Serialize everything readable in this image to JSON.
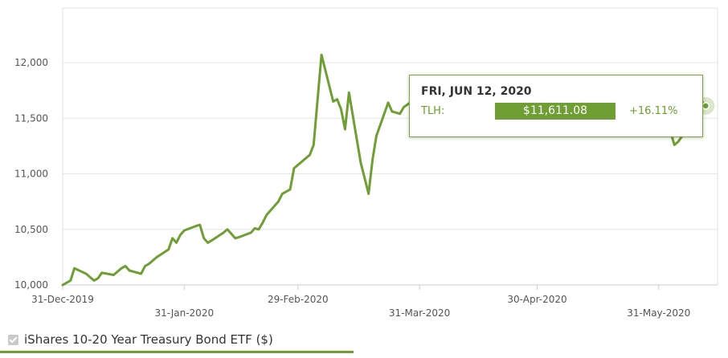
{
  "chart_data": {
    "type": "line",
    "ylim": [
      10000,
      12000
    ],
    "y_ticks": [
      "10,000",
      "10,500",
      "11,000",
      "11,500",
      "12,000"
    ],
    "x_ticks": [
      {
        "label": "31-Dec-2019",
        "date": "2019-12-31"
      },
      {
        "label": "31-Jan-2020",
        "date": "2020-01-31"
      },
      {
        "label": "29-Feb-2020",
        "date": "2020-02-29"
      },
      {
        "label": "31-Mar-2020",
        "date": "2020-03-31"
      },
      {
        "label": "30-Apr-2020",
        "date": "2020-04-30"
      },
      {
        "label": "31-May-2020",
        "date": "2020-05-31"
      }
    ],
    "grid": true,
    "line_color": "#6e9e34",
    "series": [
      {
        "name": "iShares 10-20 Year Treasury Bond ETF ($)",
        "points": [
          [
            "2019-12-31",
            10000
          ],
          [
            "2020-01-02",
            10040
          ],
          [
            "2020-01-03",
            10150
          ],
          [
            "2020-01-06",
            10100
          ],
          [
            "2020-01-08",
            10040
          ],
          [
            "2020-01-09",
            10060
          ],
          [
            "2020-01-10",
            10110
          ],
          [
            "2020-01-13",
            10090
          ],
          [
            "2020-01-15",
            10150
          ],
          [
            "2020-01-16",
            10170
          ],
          [
            "2020-01-17",
            10130
          ],
          [
            "2020-01-20",
            10100
          ],
          [
            "2020-01-21",
            10170
          ],
          [
            "2020-01-22",
            10190
          ],
          [
            "2020-01-24",
            10250
          ],
          [
            "2020-01-27",
            10320
          ],
          [
            "2020-01-28",
            10420
          ],
          [
            "2020-01-29",
            10380
          ],
          [
            "2020-01-30",
            10450
          ],
          [
            "2020-01-31",
            10490
          ],
          [
            "2020-02-03",
            10530
          ],
          [
            "2020-02-04",
            10540
          ],
          [
            "2020-02-05",
            10420
          ],
          [
            "2020-02-06",
            10380
          ],
          [
            "2020-02-07",
            10400
          ],
          [
            "2020-02-10",
            10470
          ],
          [
            "2020-02-11",
            10500
          ],
          [
            "2020-02-12",
            10460
          ],
          [
            "2020-02-13",
            10420
          ],
          [
            "2020-02-14",
            10430
          ],
          [
            "2020-02-17",
            10470
          ],
          [
            "2020-02-18",
            10510
          ],
          [
            "2020-02-19",
            10500
          ],
          [
            "2020-02-20",
            10560
          ],
          [
            "2020-02-21",
            10630
          ],
          [
            "2020-02-24",
            10750
          ],
          [
            "2020-02-25",
            10820
          ],
          [
            "2020-02-26",
            10840
          ],
          [
            "2020-02-27",
            10860
          ],
          [
            "2020-02-28",
            11050
          ],
          [
            "2020-03-02",
            11140
          ],
          [
            "2020-03-03",
            11170
          ],
          [
            "2020-03-04",
            11260
          ],
          [
            "2020-03-06",
            12070
          ],
          [
            "2020-03-09",
            11650
          ],
          [
            "2020-03-10",
            11670
          ],
          [
            "2020-03-11",
            11580
          ],
          [
            "2020-03-12",
            11400
          ],
          [
            "2020-03-13",
            11730
          ],
          [
            "2020-03-16",
            11100
          ],
          [
            "2020-03-18",
            10820
          ],
          [
            "2020-03-19",
            11120
          ],
          [
            "2020-03-20",
            11340
          ],
          [
            "2020-03-23",
            11640
          ],
          [
            "2020-03-24",
            11560
          ],
          [
            "2020-03-26",
            11540
          ],
          [
            "2020-03-27",
            11600
          ],
          [
            "2020-03-31",
            11700
          ],
          [
            "2020-06-03",
            11380
          ],
          [
            "2020-06-04",
            11260
          ],
          [
            "2020-06-05",
            11290
          ],
          [
            "2020-06-08",
            11440
          ],
          [
            "2020-06-09",
            11580
          ],
          [
            "2020-06-10",
            11700
          ],
          [
            "2020-06-11",
            11650
          ],
          [
            "2020-06-12",
            11611.08
          ]
        ]
      }
    ],
    "tooltip": {
      "date": "FRI, JUN 12, 2020",
      "ticker": "TLH:",
      "value": "$11,611.08",
      "change": "+16.11%",
      "date_iso": "2020-06-12"
    }
  },
  "legend": {
    "label": "iShares 10-20 Year Treasury Bond ETF ($)"
  }
}
